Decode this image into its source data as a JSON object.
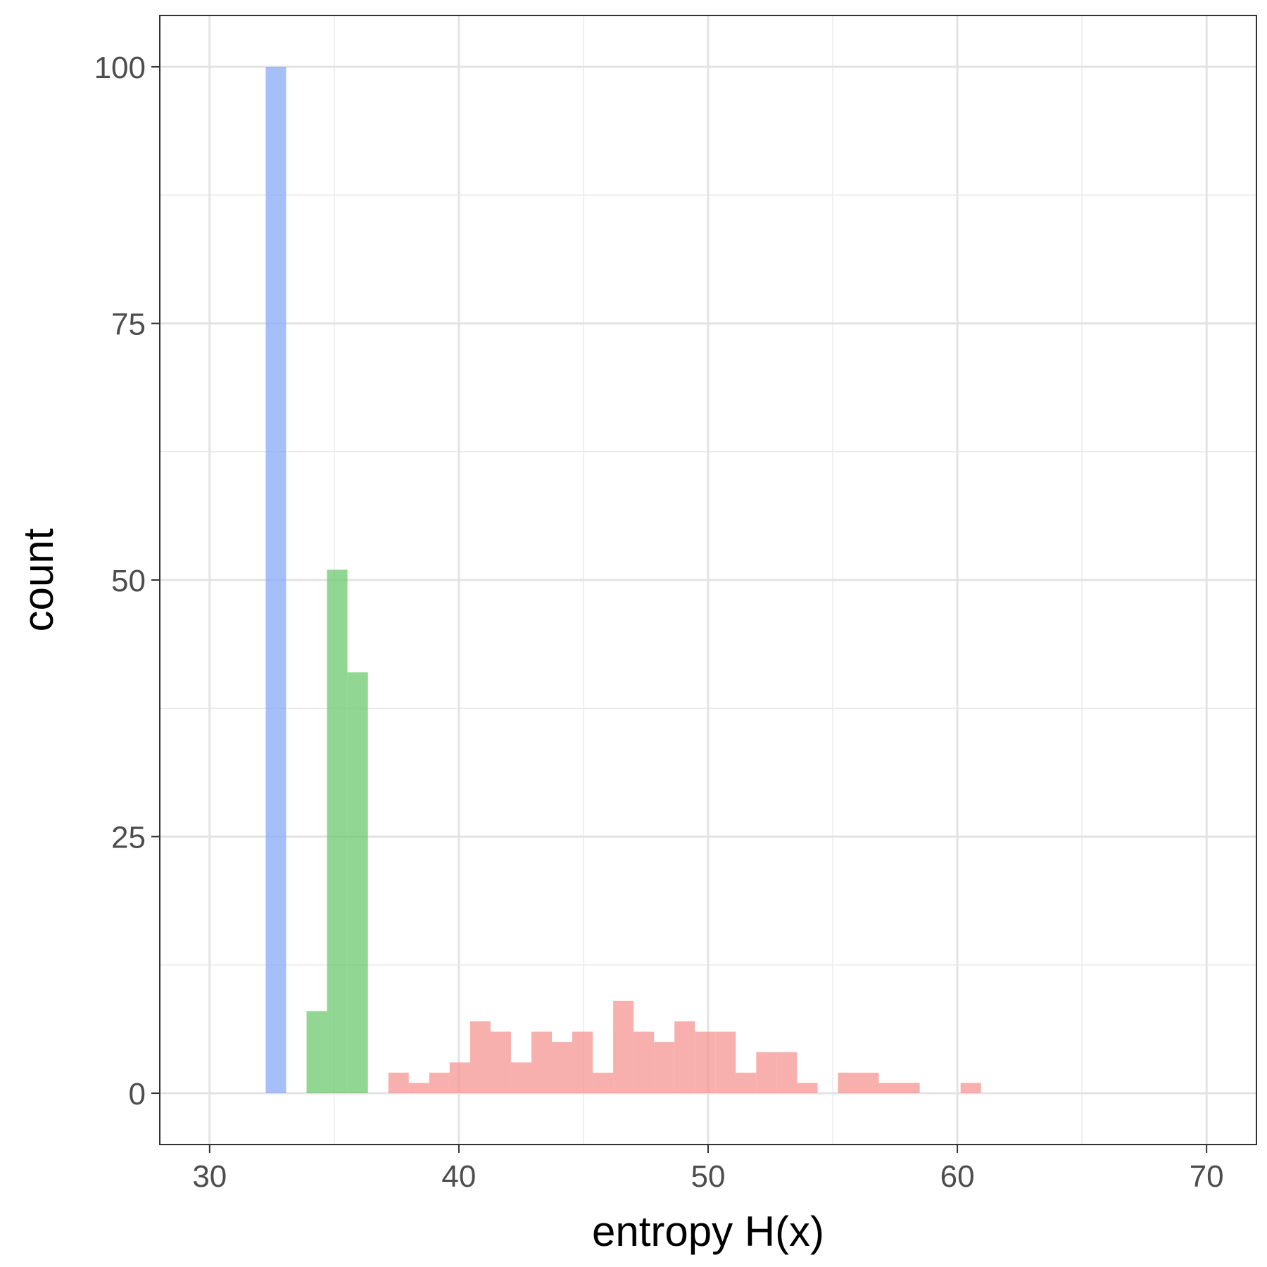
{
  "chart_data": {
    "type": "bar",
    "subtype": "histogram",
    "xlabel": "entropy H(x)",
    "ylabel": "count",
    "xlim": [
      28,
      72
    ],
    "ylim": [
      -5,
      105
    ],
    "x_ticks": [
      30,
      40,
      50,
      60,
      70
    ],
    "y_ticks": [
      0,
      25,
      50,
      75,
      100
    ],
    "x_minor": [
      35,
      45,
      55,
      65
    ],
    "y_minor": [
      12.5,
      37.5,
      62.5,
      87.5
    ],
    "grid": true,
    "bin_width": 0.82,
    "series": [
      {
        "color": "#8aaaf7",
        "bins": [
          {
            "x0": 32.25,
            "x1": 33.07,
            "count": 100
          }
        ]
      },
      {
        "color": "#6cc86e",
        "bins": [
          {
            "x0": 33.89,
            "x1": 34.71,
            "count": 8
          },
          {
            "x0": 34.71,
            "x1": 35.53,
            "count": 51
          },
          {
            "x0": 35.53,
            "x1": 36.35,
            "count": 41
          }
        ]
      },
      {
        "color": "#f49592",
        "bins": [
          {
            "x0": 37.17,
            "x1": 37.99,
            "count": 2
          },
          {
            "x0": 37.99,
            "x1": 38.81,
            "count": 1
          },
          {
            "x0": 38.81,
            "x1": 39.63,
            "count": 2
          },
          {
            "x0": 39.63,
            "x1": 40.45,
            "count": 3
          },
          {
            "x0": 40.45,
            "x1": 41.27,
            "count": 7
          },
          {
            "x0": 41.27,
            "x1": 42.09,
            "count": 6
          },
          {
            "x0": 42.09,
            "x1": 42.91,
            "count": 3
          },
          {
            "x0": 42.91,
            "x1": 43.73,
            "count": 6
          },
          {
            "x0": 43.73,
            "x1": 44.55,
            "count": 5
          },
          {
            "x0": 44.55,
            "x1": 45.37,
            "count": 6
          },
          {
            "x0": 45.37,
            "x1": 46.19,
            "count": 2
          },
          {
            "x0": 46.19,
            "x1": 47.01,
            "count": 9
          },
          {
            "x0": 47.01,
            "x1": 47.83,
            "count": 6
          },
          {
            "x0": 47.83,
            "x1": 48.65,
            "count": 5
          },
          {
            "x0": 48.65,
            "x1": 49.47,
            "count": 7
          },
          {
            "x0": 49.47,
            "x1": 50.29,
            "count": 6
          },
          {
            "x0": 50.29,
            "x1": 51.11,
            "count": 6
          },
          {
            "x0": 51.11,
            "x1": 51.93,
            "count": 2
          },
          {
            "x0": 51.93,
            "x1": 52.75,
            "count": 4
          },
          {
            "x0": 52.75,
            "x1": 53.57,
            "count": 4
          },
          {
            "x0": 53.57,
            "x1": 54.39,
            "count": 1
          },
          {
            "x0": 55.21,
            "x1": 56.03,
            "count": 2
          },
          {
            "x0": 56.03,
            "x1": 56.85,
            "count": 2
          },
          {
            "x0": 56.85,
            "x1": 57.67,
            "count": 1
          },
          {
            "x0": 57.67,
            "x1": 58.49,
            "count": 1
          },
          {
            "x0": 60.13,
            "x1": 60.95,
            "count": 1
          }
        ]
      }
    ]
  }
}
